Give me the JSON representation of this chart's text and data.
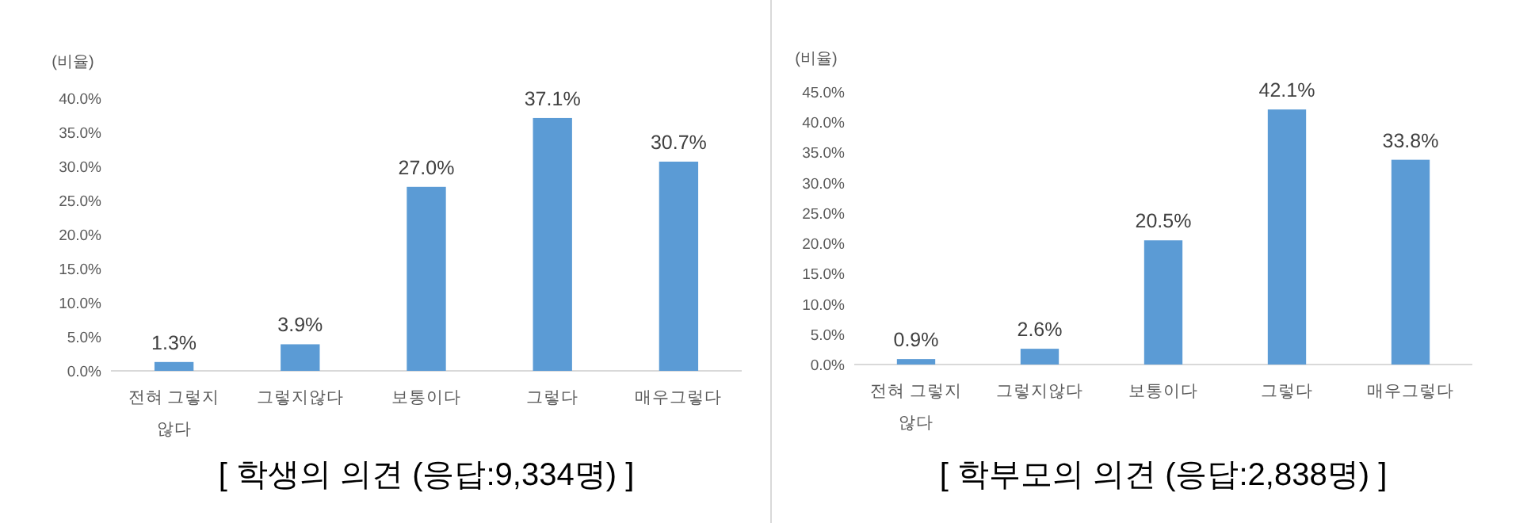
{
  "chart_data": [
    {
      "type": "bar",
      "title": "[ 학생의 의견 (응답:9,334명) ]",
      "ylabel": "(비율)",
      "categories": [
        "전혀 그렇지 않다",
        "그렇지않다",
        "보통이다",
        "그렇다",
        "매우그렇다"
      ],
      "values": [
        1.3,
        3.9,
        27.0,
        37.1,
        30.7
      ],
      "value_labels": [
        "1.3%",
        "3.9%",
        "27.0%",
        "37.1%",
        "30.7%"
      ],
      "color": "#5b9bd5",
      "ylim": [
        0,
        40
      ],
      "yticks": [
        {
          "value": 0,
          "label": "0.0%"
        },
        {
          "value": 5,
          "label": "5.0%"
        },
        {
          "value": 10,
          "label": "10.0%"
        },
        {
          "value": 15,
          "label": "15.0%"
        },
        {
          "value": 20,
          "label": "20.0%"
        },
        {
          "value": 25,
          "label": "25.0%"
        },
        {
          "value": 30,
          "label": "30.0%"
        },
        {
          "value": 35,
          "label": "35.0%"
        },
        {
          "value": 40,
          "label": "40.0%"
        }
      ],
      "grid": false
    },
    {
      "type": "bar",
      "title": "[ 학부모의 의견 (응답:2,838명) ]",
      "ylabel": "(비율)",
      "categories": [
        "전혀 그렇지 않다",
        "그렇지않다",
        "보통이다",
        "그렇다",
        "매우그렇다"
      ],
      "values": [
        0.9,
        2.6,
        20.5,
        42.1,
        33.8
      ],
      "value_labels": [
        "0.9%",
        "2.6%",
        "20.5%",
        "42.1%",
        "33.8%"
      ],
      "color": "#5b9bd5",
      "ylim": [
        0,
        45
      ],
      "yticks": [
        {
          "value": 0,
          "label": "0.0%"
        },
        {
          "value": 5,
          "label": "5.0%"
        },
        {
          "value": 10,
          "label": "10.0%"
        },
        {
          "value": 15,
          "label": "15.0%"
        },
        {
          "value": 20,
          "label": "20.0%"
        },
        {
          "value": 25,
          "label": "25.0%"
        },
        {
          "value": 30,
          "label": "30.0%"
        },
        {
          "value": 35,
          "label": "35.0%"
        },
        {
          "value": 40,
          "label": "40.0%"
        },
        {
          "value": 45,
          "label": "45.0%"
        }
      ],
      "grid": false
    }
  ]
}
